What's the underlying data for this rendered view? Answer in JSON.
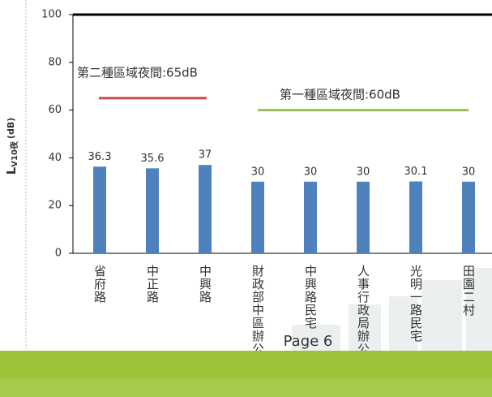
{
  "chart_data": {
    "type": "bar",
    "y_label": "L",
    "y_label_sub": "V10夜",
    "y_label_unit": "(dB)",
    "categories": [
      "省府路",
      "中正路",
      "中興路",
      "財政部中區辦公室",
      "中興路民宅",
      "人事行政局辦公室",
      "光明一路民宅",
      "田園二村"
    ],
    "values": [
      36.3,
      35.6,
      37,
      30,
      30,
      30,
      30.1,
      30
    ],
    "color": "#4f81bd",
    "ylim": [
      0,
      100
    ],
    "yticks": [
      0,
      20,
      40,
      60,
      80,
      100
    ],
    "reference_lines": [
      {
        "label": "第二種區域夜間:65dB",
        "value": 65,
        "color": "#c0504d"
      },
      {
        "label": "第一種區域夜間:60dB",
        "value": 60,
        "color": "#9bbb59"
      }
    ]
  },
  "page": {
    "footer": "Page 6"
  }
}
